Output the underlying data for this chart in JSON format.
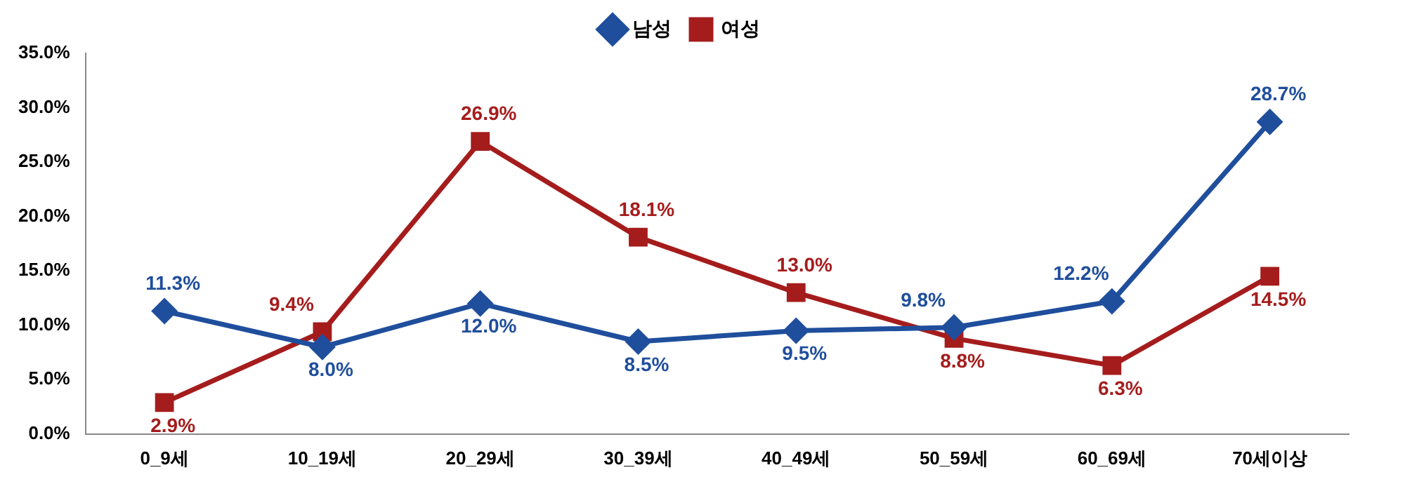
{
  "chart_data": {
    "type": "line",
    "categories": [
      "0_9세",
      "10_19세",
      "20_29세",
      "30_39세",
      "40_49세",
      "50_59세",
      "60_69세",
      "70세이상"
    ],
    "series": [
      {
        "name": "남성",
        "color": "#1f4e9c",
        "marker": "diamond",
        "values": [
          11.3,
          8.0,
          12.0,
          8.5,
          9.5,
          9.8,
          12.2,
          28.7
        ],
        "value_labels": [
          "11.3%",
          "8.0%",
          "12.0%",
          "8.5%",
          "9.5%",
          "9.8%",
          "12.2%",
          "28.7%"
        ]
      },
      {
        "name": "여성",
        "color": "#a51c1c",
        "marker": "square",
        "values": [
          2.9,
          9.4,
          26.9,
          18.1,
          13.0,
          8.8,
          6.3,
          14.5
        ],
        "value_labels": [
          "2.9%",
          "9.4%",
          "26.9%",
          "18.1%",
          "13.0%",
          "8.8%",
          "6.3%",
          "14.5%"
        ]
      }
    ],
    "ylim": [
      0,
      35
    ],
    "yticks": [
      {
        "value": 0,
        "label": "0.0%"
      },
      {
        "value": 5,
        "label": "5.0%"
      },
      {
        "value": 10,
        "label": "10.0%"
      },
      {
        "value": 15,
        "label": "15.0%"
      },
      {
        "value": 20,
        "label": "20.0%"
      },
      {
        "value": 25,
        "label": "25.0%"
      },
      {
        "value": 30,
        "label": "30.0%"
      },
      {
        "value": 35,
        "label": "35.0%"
      }
    ],
    "grid": false,
    "legend": "top",
    "line_style": "solid"
  }
}
